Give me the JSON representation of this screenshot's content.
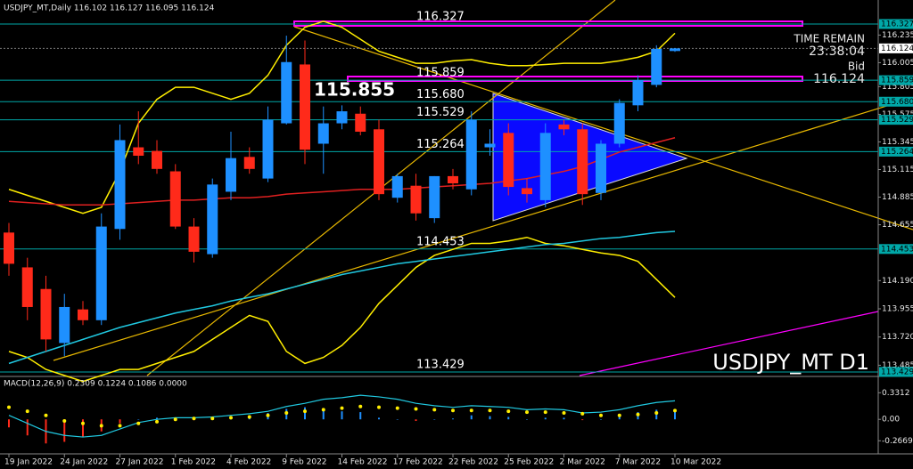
{
  "chart_data": [
    {
      "type": "candlestick",
      "symbol_header": "USDJPY_MT,Daily 116.102 116.127 116.095 116.124",
      "title": "USDJPY_MT D1",
      "annotation": "115.855",
      "time_remain_label": "TIME REMAIN",
      "time_remain": "23:38:04",
      "bid_label": "Bid",
      "bid": 116.124,
      "categories": [
        "19 Jan 2022",
        null,
        null,
        "24 Jan 2022",
        null,
        null,
        "27 Jan 2022",
        null,
        null,
        "1 Feb 2022",
        null,
        null,
        "4 Feb 2022",
        null,
        null,
        "9 Feb 2022",
        null,
        null,
        "14 Feb 2022",
        null,
        null,
        "17 Feb 2022",
        null,
        null,
        "22 Feb 2022",
        null,
        null,
        "25 Feb 2022",
        null,
        null,
        "2 Mar 2022",
        null,
        null,
        "7 Mar 2022",
        null,
        null,
        "10 Mar 2022"
      ],
      "open": [
        114.59,
        114.3,
        114.12,
        113.67,
        113.95,
        113.86,
        114.62,
        115.3,
        115.27,
        115.1,
        114.64,
        114.41,
        114.93,
        115.22,
        115.04,
        115.5,
        115.99,
        115.33,
        115.5,
        115.58,
        115.45,
        114.88,
        114.98,
        114.71,
        115.06,
        114.95,
        115.3,
        115.42,
        114.96,
        114.86,
        115.49,
        115.45,
        114.92,
        115.33,
        115.65,
        115.82,
        116.102
      ],
      "high": [
        114.67,
        114.38,
        114.23,
        114.08,
        114.02,
        114.75,
        115.49,
        115.6,
        115.36,
        115.16,
        114.71,
        115.04,
        115.43,
        115.3,
        115.64,
        116.23,
        116.19,
        115.64,
        115.65,
        115.64,
        115.53,
        115.08,
        115.08,
        115.06,
        115.12,
        115.6,
        115.45,
        115.5,
        115.04,
        115.5,
        115.53,
        115.5,
        115.36,
        115.7,
        115.9,
        116.15,
        116.127
      ],
      "low": [
        114.23,
        113.86,
        113.6,
        113.56,
        113.82,
        113.82,
        114.53,
        115.16,
        115.08,
        114.62,
        114.34,
        114.38,
        114.86,
        115.08,
        115.01,
        115.49,
        115.16,
        115.08,
        115.45,
        115.4,
        114.86,
        114.84,
        114.69,
        114.67,
        114.95,
        114.9,
        115.23,
        114.9,
        114.84,
        114.8,
        115.4,
        114.82,
        114.86,
        115.3,
        115.6,
        115.8,
        116.095
      ],
      "close": [
        114.33,
        113.97,
        113.7,
        113.97,
        113.86,
        114.64,
        115.36,
        115.23,
        115.12,
        114.64,
        114.43,
        114.99,
        115.21,
        115.12,
        115.53,
        116.01,
        115.28,
        115.5,
        115.6,
        115.43,
        114.91,
        115.06,
        114.75,
        115.06,
        115.0,
        115.53,
        115.33,
        114.97,
        114.91,
        115.42,
        115.45,
        114.91,
        115.33,
        115.67,
        115.86,
        116.12,
        116.124
      ],
      "up_color": "#1e90ff",
      "down_color": "#ff2a1a",
      "overlays": [
        {
          "color": "#ffee00",
          "values": [
            114.95,
            114.9,
            114.85,
            114.8,
            114.75,
            114.8,
            115.1,
            115.5,
            115.7,
            115.8,
            115.8,
            115.75,
            115.7,
            115.75,
            115.9,
            116.15,
            116.3,
            116.35,
            116.3,
            116.2,
            116.1,
            116.05,
            116.0,
            116.0,
            116.02,
            116.03,
            116.0,
            115.98,
            115.98,
            115.99,
            116.0,
            116.0,
            116.0,
            116.02,
            116.05,
            116.1,
            116.25
          ]
        },
        {
          "color": "#ffee00",
          "values": [
            113.6,
            113.55,
            113.45,
            113.4,
            113.35,
            113.4,
            113.45,
            113.45,
            113.5,
            113.55,
            113.6,
            113.7,
            113.8,
            113.9,
            113.85,
            113.6,
            113.5,
            113.55,
            113.65,
            113.8,
            114.0,
            114.15,
            114.3,
            114.4,
            114.45,
            114.5,
            114.5,
            114.52,
            114.55,
            114.5,
            114.48,
            114.45,
            114.42,
            114.4,
            114.35,
            114.2,
            114.05
          ]
        },
        {
          "color": "#e02020",
          "values": [
            114.85,
            114.84,
            114.83,
            114.82,
            114.82,
            114.82,
            114.83,
            114.84,
            114.85,
            114.86,
            114.86,
            114.87,
            114.88,
            114.88,
            114.89,
            114.91,
            114.92,
            114.93,
            114.94,
            114.95,
            114.95,
            114.95,
            114.96,
            114.97,
            114.98,
            114.99,
            115.0,
            115.02,
            115.04,
            115.07,
            115.1,
            115.14,
            115.2,
            115.26,
            115.3,
            115.34,
            115.38
          ]
        },
        {
          "color": "#20c8e0",
          "values": [
            113.5,
            113.55,
            113.6,
            113.65,
            113.7,
            113.75,
            113.8,
            113.84,
            113.88,
            113.92,
            113.95,
            113.98,
            114.02,
            114.05,
            114.08,
            114.12,
            114.16,
            114.2,
            114.24,
            114.27,
            114.3,
            114.33,
            114.35,
            114.37,
            114.39,
            114.41,
            114.43,
            114.45,
            114.47,
            114.49,
            114.5,
            114.52,
            114.54,
            114.55,
            114.57,
            114.59,
            114.6
          ]
        }
      ],
      "levels": [
        116.327,
        115.859,
        {
          "value": 115.68,
          "label": "115.680"
        },
        115.529,
        115.264,
        114.453,
        113.429
      ],
      "level_color": "#00a8a8",
      "ylim": [
        113.399,
        116.527
      ],
      "yticks": [
        116.235,
        116.005,
        115.805,
        115.575,
        115.345,
        115.115,
        114.885,
        114.655,
        {
          "value": 114.19,
          "label": "114.190"
        },
        113.955,
        {
          "value": 113.72,
          "label": "113.720"
        },
        113.485
      ]
    },
    {
      "type": "macd",
      "title": "MACD(12,26,9) 0.2309 0.1224 0.1086 0.0000",
      "histogram": [
        -0.1,
        -0.2,
        -0.3,
        -0.28,
        -0.22,
        -0.15,
        -0.05,
        0.0,
        0.02,
        0.01,
        -0.01,
        0.02,
        0.04,
        0.05,
        0.08,
        0.13,
        0.15,
        0.12,
        0.1,
        0.09,
        0.02,
        0.0,
        -0.02,
        0.0,
        0.01,
        0.05,
        0.04,
        0.03,
        0.0,
        0.02,
        0.02,
        -0.01,
        0.0,
        0.05,
        0.09,
        0.12,
        0.1224
      ],
      "signal": [
        0.15,
        0.1,
        0.05,
        -0.02,
        -0.05,
        -0.08,
        -0.08,
        -0.05,
        -0.03,
        0.0,
        0.01,
        0.01,
        0.02,
        0.03,
        0.05,
        0.08,
        0.1,
        0.12,
        0.14,
        0.16,
        0.15,
        0.14,
        0.13,
        0.12,
        0.11,
        0.11,
        0.11,
        0.1,
        0.09,
        0.09,
        0.08,
        0.07,
        0.05,
        0.05,
        0.06,
        0.08,
        0.1086
      ],
      "line": [
        0.05,
        -0.05,
        -0.15,
        -0.2,
        -0.22,
        -0.2,
        -0.12,
        -0.04,
        0.0,
        0.02,
        0.02,
        0.03,
        0.05,
        0.07,
        0.1,
        0.16,
        0.2,
        0.25,
        0.27,
        0.3,
        0.28,
        0.25,
        0.2,
        0.17,
        0.15,
        0.17,
        0.16,
        0.15,
        0.12,
        0.13,
        0.12,
        0.08,
        0.09,
        0.12,
        0.17,
        0.21,
        0.2309
      ],
      "up_color": "#1e90ff",
      "down_color": "#ff2a1a",
      "signal_color": "#ffee00",
      "line_color": "#20c8e0",
      "ylim": [
        -0.43,
        0.49
      ],
      "yticks": [
        0.3312,
        {
          "value": 0,
          "label": "0.00"
        },
        -0.2669
      ]
    }
  ]
}
